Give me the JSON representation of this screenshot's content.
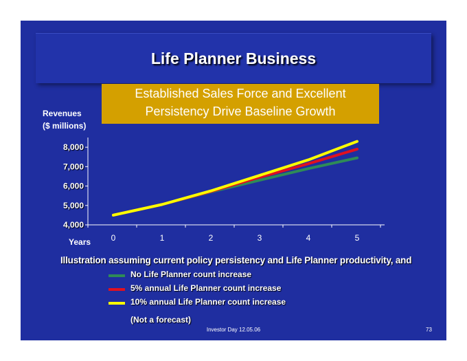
{
  "slide": {
    "title": "Life Planner Business",
    "banner_line1": "Established Sales Force and Excellent",
    "banner_line2": "Persistency Drive Baseline Growth",
    "caption": "Illustration assuming current policy persistency and Life Planner productivity, and",
    "note": "(Not a forecast)",
    "footer": "Investor Day 12.05.06",
    "page_number": "73"
  },
  "colors": {
    "background": "#1f2ea0",
    "banner": "#d4a000",
    "series_green": "#2e8b57",
    "series_red": "#e01020",
    "series_yellow": "#ffff00"
  },
  "chart_data": {
    "type": "line",
    "title": "",
    "ylabel_line1": "Revenues",
    "ylabel_line2": "($ millions)",
    "xlabel": "Years",
    "x": [
      0,
      1,
      2,
      3,
      4,
      5
    ],
    "x_tick_labels": [
      "0",
      "1",
      "2",
      "3",
      "4",
      "5"
    ],
    "y_tick_labels": [
      "4,000",
      "5,000",
      "6,000",
      "7,000",
      "8,000"
    ],
    "ylim": [
      4000,
      8500
    ],
    "grid": false,
    "series": [
      {
        "name": "No Life Planner count increase",
        "color": "#2e8b57",
        "values": [
          4500,
          5050,
          5700,
          6300,
          6900,
          7450
        ]
      },
      {
        "name": "5% annual Life Planner count increase",
        "color": "#e01020",
        "values": [
          4500,
          5050,
          5720,
          6450,
          7150,
          7900
        ]
      },
      {
        "name": "10% annual Life Planner count increase",
        "color": "#ffff00",
        "values": [
          4500,
          5050,
          5750,
          6550,
          7350,
          8300
        ]
      }
    ]
  }
}
